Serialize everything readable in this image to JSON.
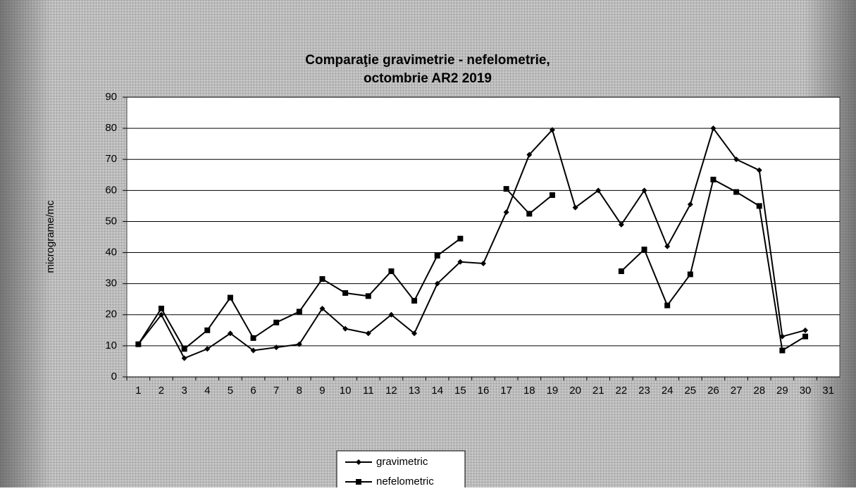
{
  "chart_data": {
    "type": "line",
    "title": [
      "Comparaţie gravimetrie - nefelometrie,",
      "octombrie AR2 2019"
    ],
    "y_label": "micrograme/mc",
    "categories": [
      "1",
      "2",
      "3",
      "4",
      "5",
      "6",
      "7",
      "8",
      "9",
      "10",
      "11",
      "12",
      "13",
      "14",
      "15",
      "16",
      "17",
      "18",
      "19",
      "20",
      "21",
      "22",
      "23",
      "24",
      "25",
      "26",
      "27",
      "28",
      "29",
      "30",
      "31"
    ],
    "series": [
      {
        "name": "gravimetric",
        "color": "#000000",
        "marker": "diamond",
        "values": [
          10.5,
          20,
          6,
          9,
          14,
          8.5,
          9.5,
          10.5,
          22,
          15.5,
          14,
          20,
          14,
          30,
          37,
          36.5,
          53,
          71.5,
          79.5,
          54.5,
          60,
          49,
          60,
          42,
          55.5,
          80,
          70,
          66.5,
          13,
          15,
          null
        ]
      },
      {
        "name": "nefelometric",
        "color": "#000000",
        "marker": "square",
        "values": [
          10.5,
          22,
          9,
          15,
          25.5,
          12.5,
          17.5,
          21,
          31.5,
          27,
          26,
          34,
          24.5,
          39,
          44.5,
          null,
          60.5,
          52.5,
          58.5,
          null,
          null,
          34,
          41,
          23,
          33,
          63.5,
          59.5,
          55,
          8.5,
          13,
          null
        ]
      }
    ],
    "ylim": [
      0,
      90
    ],
    "yticks": [
      0,
      10,
      20,
      30,
      40,
      50,
      60,
      70,
      80,
      90
    ],
    "grid": true,
    "legend": "bottom"
  }
}
